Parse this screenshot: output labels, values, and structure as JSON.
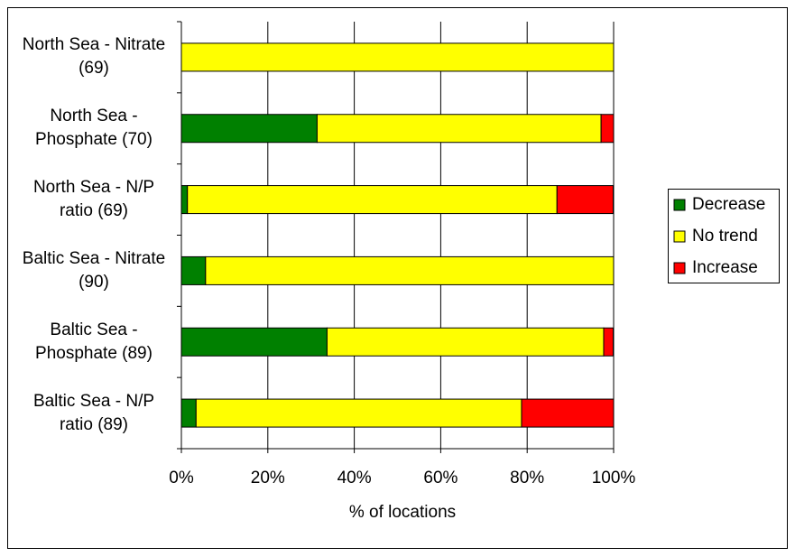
{
  "chart_data": {
    "type": "stacked-bar-horizontal",
    "categories": [
      "North Sea - Nitrate (69)",
      "North Sea - Phosphate (70)",
      "North Sea - N/P ratio (69)",
      "Baltic Sea - Nitrate (90)",
      "Baltic Sea - Phosphate (89)",
      "Baltic Sea - N/P ratio (89)"
    ],
    "series": [
      {
        "name": "Decrease",
        "color": "#008000",
        "values": [
          0,
          31.4,
          1.4,
          5.6,
          33.7,
          3.4
        ]
      },
      {
        "name": "No trend",
        "color": "#ffff00",
        "values": [
          100,
          65.7,
          85.5,
          94.4,
          64.0,
          75.3
        ]
      },
      {
        "name": "Increase",
        "color": "#ff0000",
        "values": [
          0,
          2.9,
          13.0,
          0,
          2.2,
          21.3
        ]
      }
    ],
    "xlabel": "% of locations",
    "xlim": [
      0,
      100
    ],
    "xticks": [
      {
        "value": 0,
        "label": "0%"
      },
      {
        "value": 20,
        "label": "20%"
      },
      {
        "value": 40,
        "label": "40%"
      },
      {
        "value": 60,
        "label": "60%"
      },
      {
        "value": 80,
        "label": "80%"
      },
      {
        "value": 100,
        "label": "100%"
      }
    ],
    "grid": true,
    "legend": "right"
  }
}
